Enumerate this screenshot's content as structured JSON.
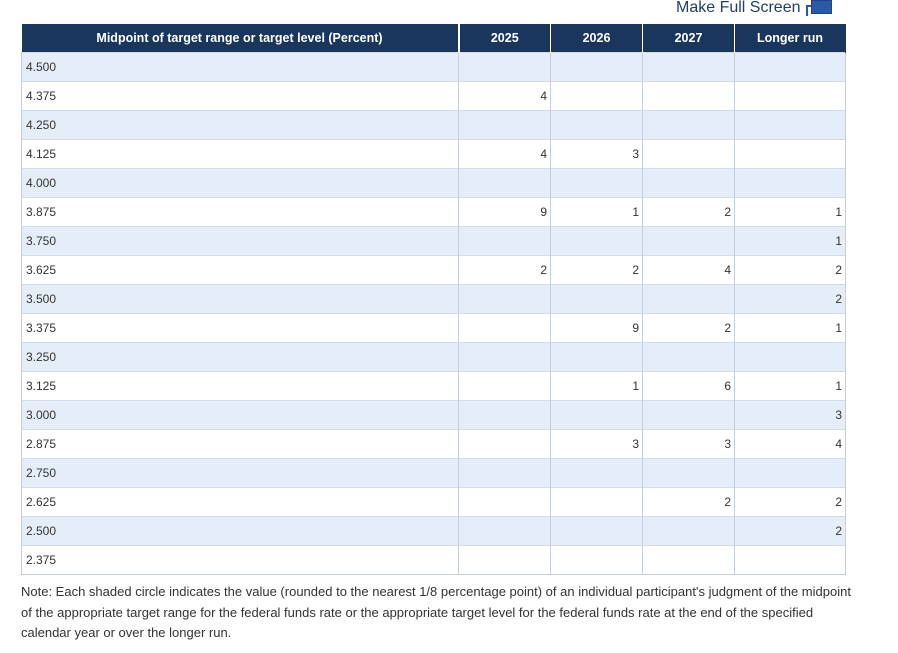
{
  "fullscreen": {
    "label": "Make Full Screen",
    "icon": "fullscreen-icon"
  },
  "table": {
    "headers": [
      "Midpoint of target range or target level (Percent)",
      "2025",
      "2026",
      "2027",
      "Longer run"
    ],
    "rows": [
      {
        "level": "4.500",
        "v2025": "",
        "v2026": "",
        "v2027": "",
        "longer": ""
      },
      {
        "level": "4.375",
        "v2025": "4",
        "v2026": "",
        "v2027": "",
        "longer": ""
      },
      {
        "level": "4.250",
        "v2025": "",
        "v2026": "",
        "v2027": "",
        "longer": ""
      },
      {
        "level": "4.125",
        "v2025": "4",
        "v2026": "3",
        "v2027": "",
        "longer": ""
      },
      {
        "level": "4.000",
        "v2025": "",
        "v2026": "",
        "v2027": "",
        "longer": ""
      },
      {
        "level": "3.875",
        "v2025": "9",
        "v2026": "1",
        "v2027": "2",
        "longer": "1"
      },
      {
        "level": "3.750",
        "v2025": "",
        "v2026": "",
        "v2027": "",
        "longer": "1"
      },
      {
        "level": "3.625",
        "v2025": "2",
        "v2026": "2",
        "v2027": "4",
        "longer": "2"
      },
      {
        "level": "3.500",
        "v2025": "",
        "v2026": "",
        "v2027": "",
        "longer": "2"
      },
      {
        "level": "3.375",
        "v2025": "",
        "v2026": "9",
        "v2027": "2",
        "longer": "1"
      },
      {
        "level": "3.250",
        "v2025": "",
        "v2026": "",
        "v2027": "",
        "longer": ""
      },
      {
        "level": "3.125",
        "v2025": "",
        "v2026": "1",
        "v2027": "6",
        "longer": "1"
      },
      {
        "level": "3.000",
        "v2025": "",
        "v2026": "",
        "v2027": "",
        "longer": "3"
      },
      {
        "level": "2.875",
        "v2025": "",
        "v2026": "3",
        "v2027": "3",
        "longer": "4"
      },
      {
        "level": "2.750",
        "v2025": "",
        "v2026": "",
        "v2027": "",
        "longer": ""
      },
      {
        "level": "2.625",
        "v2025": "",
        "v2026": "",
        "v2027": "2",
        "longer": "2"
      },
      {
        "level": "2.500",
        "v2025": "",
        "v2026": "",
        "v2027": "",
        "longer": "2"
      },
      {
        "level": "2.375",
        "v2025": "",
        "v2026": "",
        "v2027": "",
        "longer": ""
      }
    ]
  },
  "note": "Note: Each shaded circle indicates the value (rounded to the nearest 1/8 percentage point) of an individual participant's judgment of the midpoint of the appropriate target range for the federal funds rate or the appropriate target level for the federal funds rate at the end of the specified calendar year or over the longer run."
}
